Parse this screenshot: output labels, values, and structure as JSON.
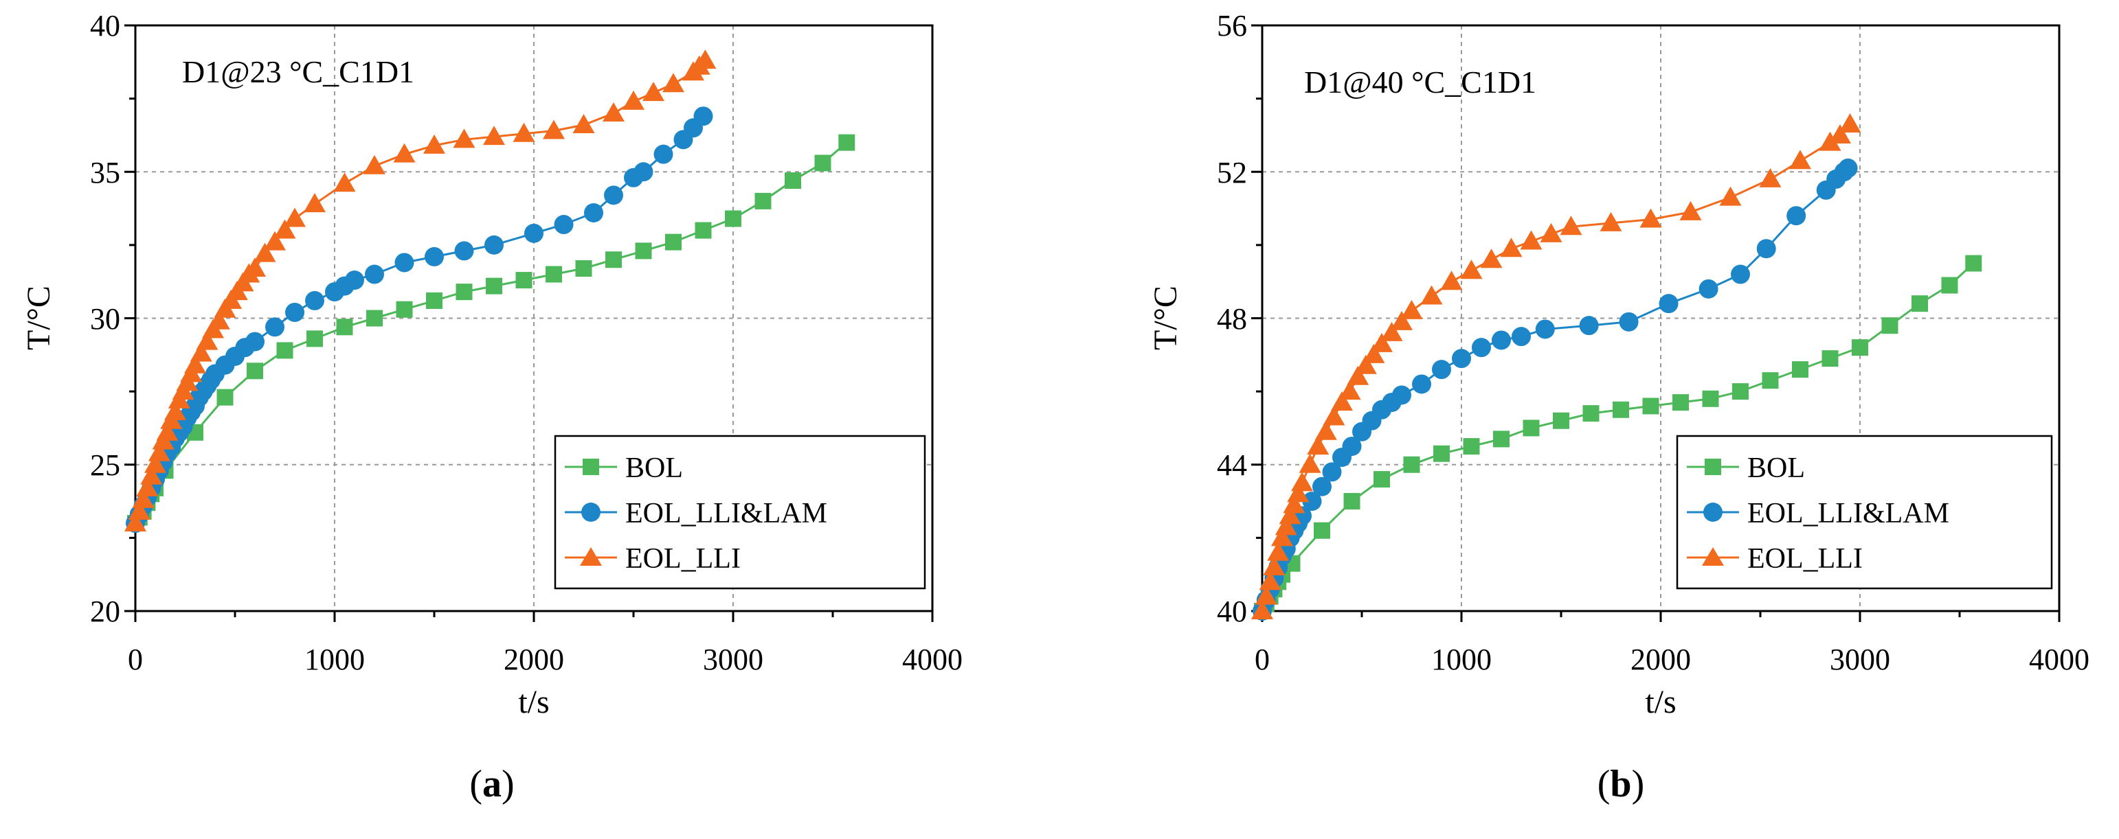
{
  "chart_data": [
    {
      "type": "line",
      "panel_label": "a",
      "title": "D1@23 °C_C1D1",
      "xlabel": "t/s",
      "ylabel": "T/°C",
      "xlim": [
        0,
        4000
      ],
      "ylim": [
        20,
        40
      ],
      "xticks": [
        0,
        1000,
        2000,
        3000,
        4000
      ],
      "yticks": [
        20,
        25,
        30,
        35,
        40
      ],
      "xtick_labels": [
        "0",
        "1000",
        "2000",
        "3000",
        "4000"
      ],
      "ytick_labels": [
        "20",
        "25",
        "30",
        "35",
        "40"
      ],
      "grid": true,
      "legend_position": "bottom-right",
      "series": [
        {
          "name": "BOL",
          "color": "#4CB85A",
          "marker": "square",
          "x": [
            0,
            20,
            40,
            60,
            80,
            100,
            150,
            300,
            450,
            600,
            750,
            900,
            1050,
            1200,
            1350,
            1500,
            1650,
            1800,
            1950,
            2100,
            2250,
            2400,
            2550,
            2700,
            2850,
            3000,
            3150,
            3300,
            3450,
            3570
          ],
          "y": [
            23.0,
            23.2,
            23.4,
            23.7,
            24.0,
            24.2,
            24.8,
            26.1,
            27.3,
            28.2,
            28.9,
            29.3,
            29.7,
            30.0,
            30.3,
            30.6,
            30.9,
            31.1,
            31.3,
            31.5,
            31.7,
            32.0,
            32.3,
            32.6,
            33.0,
            33.4,
            34.0,
            34.7,
            35.3,
            36.0
          ]
        },
        {
          "name": "EOL_LLI&LAM",
          "color": "#1C86C8",
          "marker": "circle",
          "x": [
            0,
            20,
            40,
            60,
            80,
            100,
            120,
            140,
            160,
            180,
            200,
            220,
            240,
            260,
            280,
            300,
            320,
            340,
            360,
            380,
            400,
            450,
            500,
            550,
            600,
            700,
            800,
            900,
            1000,
            1050,
            1100,
            1200,
            1350,
            1500,
            1650,
            1800,
            2000,
            2150,
            2300,
            2400,
            2500,
            2550,
            2650,
            2750,
            2800,
            2850
          ],
          "y": [
            23.0,
            23.3,
            23.6,
            23.9,
            24.2,
            24.5,
            24.8,
            25.1,
            25.4,
            25.6,
            25.9,
            26.1,
            26.3,
            26.6,
            26.8,
            27.0,
            27.3,
            27.5,
            27.7,
            27.9,
            28.1,
            28.4,
            28.7,
            29.0,
            29.2,
            29.7,
            30.2,
            30.6,
            30.9,
            31.1,
            31.3,
            31.5,
            31.9,
            32.1,
            32.3,
            32.5,
            32.9,
            33.2,
            33.6,
            34.2,
            34.8,
            35.0,
            35.6,
            36.1,
            36.5,
            36.9
          ]
        },
        {
          "name": "EOL_LLI",
          "color": "#F26B1D",
          "marker": "triangle",
          "x": [
            0,
            20,
            40,
            60,
            80,
            100,
            120,
            140,
            160,
            180,
            200,
            220,
            240,
            260,
            280,
            300,
            330,
            360,
            390,
            420,
            450,
            480,
            510,
            540,
            570,
            600,
            650,
            700,
            750,
            800,
            900,
            1050,
            1200,
            1350,
            1500,
            1650,
            1800,
            1950,
            2100,
            2250,
            2400,
            2500,
            2600,
            2700,
            2800,
            2830,
            2860
          ],
          "y": [
            23.0,
            23.4,
            23.8,
            24.2,
            24.6,
            25.0,
            25.4,
            25.8,
            26.1,
            26.5,
            26.8,
            27.2,
            27.5,
            27.8,
            28.1,
            28.4,
            28.8,
            29.2,
            29.6,
            29.9,
            30.3,
            30.6,
            30.9,
            31.2,
            31.5,
            31.7,
            32.2,
            32.6,
            33.0,
            33.4,
            33.9,
            34.6,
            35.2,
            35.6,
            35.9,
            36.1,
            36.2,
            36.3,
            36.4,
            36.6,
            37.0,
            37.4,
            37.7,
            38.0,
            38.4,
            38.6,
            38.8
          ]
        }
      ]
    },
    {
      "type": "line",
      "panel_label": "b",
      "title": "D1@40 °C_C1D1",
      "xlabel": "t/s",
      "ylabel": "T/°C",
      "xlim": [
        0,
        4000
      ],
      "ylim": [
        40,
        56
      ],
      "xticks": [
        0,
        1000,
        2000,
        3000,
        4000
      ],
      "yticks": [
        40,
        44,
        48,
        52,
        56
      ],
      "xtick_labels": [
        "0",
        "1000",
        "2000",
        "3000",
        "4000"
      ],
      "ytick_labels": [
        "40",
        "44",
        "48",
        "52",
        "56"
      ],
      "grid": true,
      "legend_position": "bottom-right",
      "series": [
        {
          "name": "BOL",
          "color": "#4CB85A",
          "marker": "square",
          "x": [
            0,
            20,
            40,
            60,
            80,
            100,
            150,
            300,
            450,
            600,
            750,
            900,
            1050,
            1200,
            1350,
            1500,
            1650,
            1800,
            1950,
            2100,
            2250,
            2400,
            2550,
            2700,
            2850,
            3000,
            3150,
            3300,
            3450,
            3570
          ],
          "y": [
            40.0,
            40.2,
            40.4,
            40.6,
            40.8,
            41.0,
            41.3,
            42.2,
            43.0,
            43.6,
            44.0,
            44.3,
            44.5,
            44.7,
            45.0,
            45.2,
            45.4,
            45.5,
            45.6,
            45.7,
            45.8,
            46.0,
            46.3,
            46.6,
            46.9,
            47.2,
            47.8,
            48.4,
            48.9,
            49.5
          ]
        },
        {
          "name": "EOL_LLI&LAM",
          "color": "#1C86C8",
          "marker": "circle",
          "x": [
            0,
            20,
            40,
            60,
            80,
            100,
            120,
            140,
            160,
            180,
            200,
            250,
            300,
            350,
            400,
            450,
            500,
            550,
            600,
            650,
            700,
            800,
            900,
            1000,
            1100,
            1200,
            1300,
            1420,
            1640,
            1840,
            2040,
            2240,
            2400,
            2530,
            2680,
            2830,
            2880,
            2920,
            2940
          ],
          "y": [
            40.0,
            40.3,
            40.6,
            40.9,
            41.2,
            41.5,
            41.7,
            42.0,
            42.2,
            42.4,
            42.6,
            43.0,
            43.4,
            43.8,
            44.2,
            44.5,
            44.9,
            45.2,
            45.5,
            45.7,
            45.9,
            46.2,
            46.6,
            46.9,
            47.2,
            47.4,
            47.5,
            47.7,
            47.8,
            47.9,
            48.4,
            48.8,
            49.2,
            49.9,
            50.8,
            51.5,
            51.8,
            52.0,
            52.1
          ]
        },
        {
          "name": "EOL_LLI",
          "color": "#F26B1D",
          "marker": "triangle",
          "x": [
            0,
            20,
            40,
            60,
            80,
            100,
            120,
            140,
            160,
            180,
            200,
            240,
            280,
            320,
            360,
            400,
            440,
            480,
            520,
            560,
            600,
            650,
            700,
            750,
            850,
            950,
            1050,
            1150,
            1250,
            1350,
            1450,
            1550,
            1750,
            1950,
            2150,
            2350,
            2550,
            2700,
            2850,
            2900,
            2950
          ],
          "y": [
            40.0,
            40.4,
            40.8,
            41.2,
            41.6,
            42.0,
            42.3,
            42.6,
            42.9,
            43.2,
            43.5,
            44.0,
            44.5,
            44.9,
            45.3,
            45.7,
            46.0,
            46.4,
            46.7,
            47.0,
            47.3,
            47.6,
            47.9,
            48.2,
            48.6,
            49.0,
            49.3,
            49.6,
            49.9,
            50.1,
            50.3,
            50.5,
            50.6,
            50.7,
            50.9,
            51.3,
            51.8,
            52.3,
            52.8,
            53.0,
            53.3
          ]
        }
      ]
    }
  ]
}
